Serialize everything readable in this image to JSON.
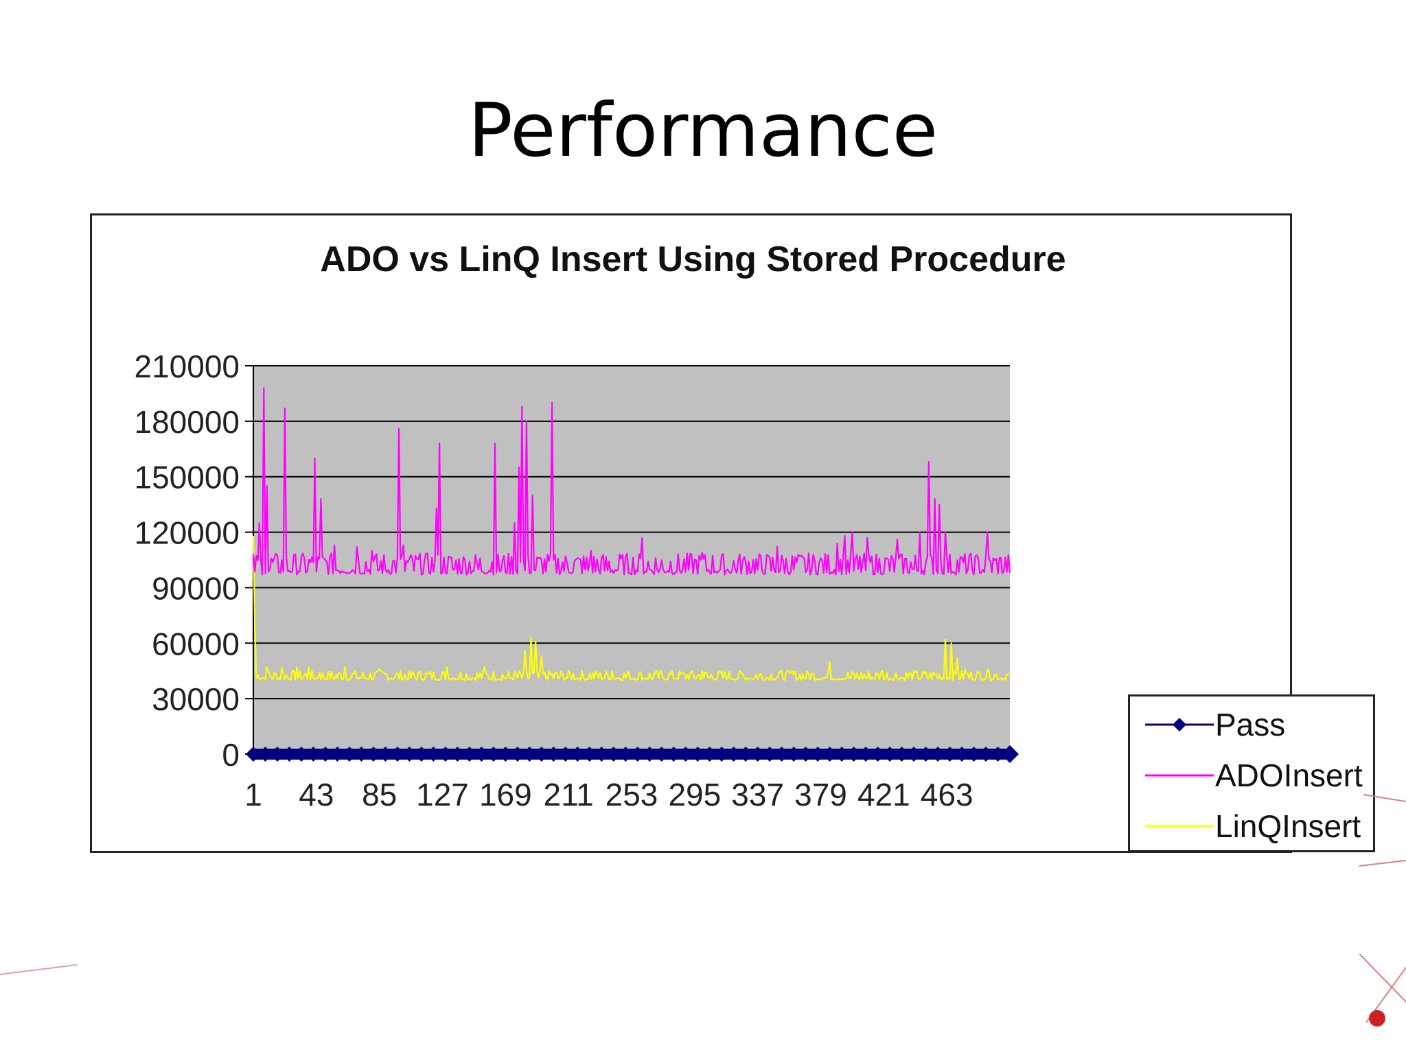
{
  "slide": {
    "title": "Performance"
  },
  "colors": {
    "plot_bg": "#c0c0c0",
    "pass": "#000080",
    "ado": "#ff00ff",
    "linq": "#ffff00",
    "decoration": "#cc2222"
  },
  "chart_data": {
    "type": "line",
    "title": "ADO vs LinQ Insert Using Stored Procedure",
    "xlabel": "",
    "ylabel": "",
    "ylim": [
      0,
      210000
    ],
    "y_ticks": [
      "210000",
      "180000",
      "150000",
      "120000",
      "90000",
      "60000",
      "30000",
      "0"
    ],
    "x_ticks": [
      "1",
      "43",
      "85",
      "127",
      "169",
      "211",
      "253",
      "295",
      "337",
      "379",
      "421",
      "463"
    ],
    "x_range": [
      1,
      505
    ],
    "grid": true,
    "legend_position": "right",
    "series": [
      {
        "name": "Pass",
        "marker": "diamond",
        "x": [
          1,
          100,
          200,
          300,
          400,
          505
        ],
        "values": [
          0,
          0,
          0,
          0,
          0,
          0
        ]
      },
      {
        "name": "ADOInsert",
        "baseline": 97000,
        "noise": 9000,
        "peaks": [
          {
            "x": 5,
            "y": 125000
          },
          {
            "x": 8,
            "y": 198000
          },
          {
            "x": 10,
            "y": 145000
          },
          {
            "x": 22,
            "y": 187000
          },
          {
            "x": 42,
            "y": 160000
          },
          {
            "x": 46,
            "y": 138000
          },
          {
            "x": 55,
            "y": 113000
          },
          {
            "x": 70,
            "y": 112000
          },
          {
            "x": 80,
            "y": 110000
          },
          {
            "x": 98,
            "y": 176000
          },
          {
            "x": 101,
            "y": 113000
          },
          {
            "x": 125,
            "y": 168000
          },
          {
            "x": 123,
            "y": 133000
          },
          {
            "x": 162,
            "y": 168000
          },
          {
            "x": 175,
            "y": 125000
          },
          {
            "x": 178,
            "y": 155000
          },
          {
            "x": 180,
            "y": 188000
          },
          {
            "x": 183,
            "y": 180000
          },
          {
            "x": 187,
            "y": 140000
          },
          {
            "x": 200,
            "y": 190000
          },
          {
            "x": 226,
            "y": 110000
          },
          {
            "x": 260,
            "y": 117000
          },
          {
            "x": 300,
            "y": 109000
          },
          {
            "x": 350,
            "y": 112000
          },
          {
            "x": 390,
            "y": 114000
          },
          {
            "x": 395,
            "y": 118000
          },
          {
            "x": 400,
            "y": 120000
          },
          {
            "x": 410,
            "y": 117000
          },
          {
            "x": 430,
            "y": 116000
          },
          {
            "x": 445,
            "y": 120000
          },
          {
            "x": 451,
            "y": 158000
          },
          {
            "x": 455,
            "y": 138000
          },
          {
            "x": 458,
            "y": 135000
          },
          {
            "x": 462,
            "y": 120000
          },
          {
            "x": 490,
            "y": 120000
          }
        ]
      },
      {
        "name": "LinQInsert",
        "baseline": 40000,
        "noise": 4000,
        "peaks": [
          {
            "x": 1,
            "y": 118000
          },
          {
            "x": 2,
            "y": 70000
          },
          {
            "x": 10,
            "y": 47000
          },
          {
            "x": 20,
            "y": 47000
          },
          {
            "x": 30,
            "y": 47000
          },
          {
            "x": 38,
            "y": 47000
          },
          {
            "x": 45,
            "y": 44000
          },
          {
            "x": 62,
            "y": 47000
          },
          {
            "x": 85,
            "y": 46000
          },
          {
            "x": 130,
            "y": 47000
          },
          {
            "x": 155,
            "y": 47000
          },
          {
            "x": 182,
            "y": 56000
          },
          {
            "x": 186,
            "y": 63000
          },
          {
            "x": 189,
            "y": 61000
          },
          {
            "x": 193,
            "y": 53000
          },
          {
            "x": 240,
            "y": 45000
          },
          {
            "x": 300,
            "y": 45000
          },
          {
            "x": 360,
            "y": 45000
          },
          {
            "x": 385,
            "y": 50000
          },
          {
            "x": 420,
            "y": 45000
          },
          {
            "x": 462,
            "y": 62000
          },
          {
            "x": 466,
            "y": 60000
          },
          {
            "x": 470,
            "y": 52000
          },
          {
            "x": 475,
            "y": 46000
          },
          {
            "x": 490,
            "y": 46000
          }
        ]
      }
    ]
  }
}
